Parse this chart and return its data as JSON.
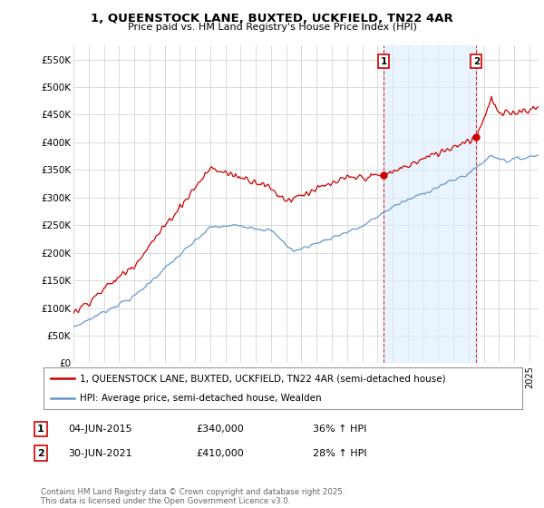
{
  "title_line1": "1, QUEENSTOCK LANE, BUXTED, UCKFIELD, TN22 4AR",
  "title_line2": "Price paid vs. HM Land Registry's House Price Index (HPI)",
  "ylabel_ticks": [
    "£0",
    "£50K",
    "£100K",
    "£150K",
    "£200K",
    "£250K",
    "£300K",
    "£350K",
    "£400K",
    "£450K",
    "£500K",
    "£550K"
  ],
  "ytick_values": [
    0,
    50000,
    100000,
    150000,
    200000,
    250000,
    300000,
    350000,
    400000,
    450000,
    500000,
    550000
  ],
  "ylim": [
    0,
    575000
  ],
  "xlim_start": 1995.0,
  "xlim_end": 2025.6,
  "red_color": "#cc0000",
  "blue_color": "#6699cc",
  "fill_color": "#ddeeff",
  "marker1_x": 2015.42,
  "marker1_y": 340000,
  "marker2_x": 2021.5,
  "marker2_y": 410000,
  "vline1_x": 2015.42,
  "vline2_x": 2021.5,
  "legend_red_label": "1, QUEENSTOCK LANE, BUXTED, UCKFIELD, TN22 4AR (semi-detached house)",
  "legend_blue_label": "HPI: Average price, semi-detached house, Wealden",
  "table_rows": [
    {
      "num": "1",
      "date": "04-JUN-2015",
      "price": "£340,000",
      "change": "36% ↑ HPI"
    },
    {
      "num": "2",
      "date": "30-JUN-2021",
      "price": "£410,000",
      "change": "28% ↑ HPI"
    }
  ],
  "footnote": "Contains HM Land Registry data © Crown copyright and database right 2025.\nThis data is licensed under the Open Government Licence v3.0.",
  "background_color": "#ffffff",
  "grid_color": "#cccccc"
}
